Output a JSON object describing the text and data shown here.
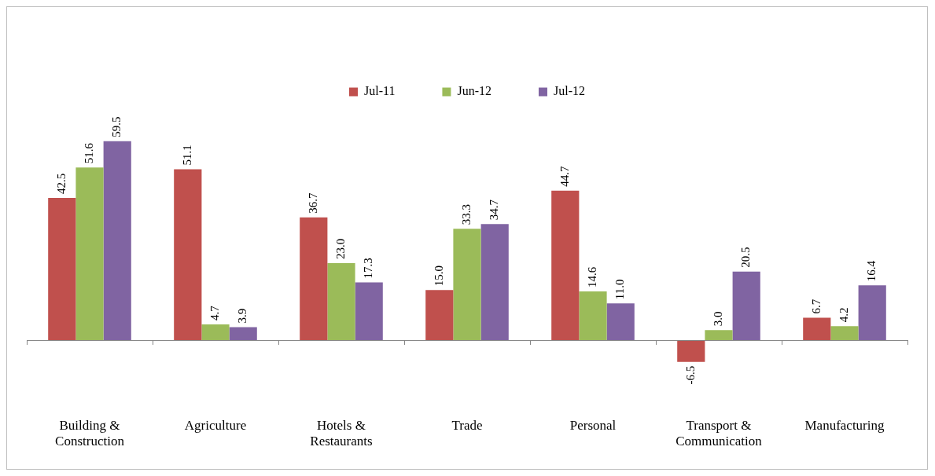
{
  "chart_data": {
    "type": "bar",
    "categories": [
      "Building & Construction",
      "Agriculture",
      "Hotels & Restaurants",
      "Trade",
      "Personal",
      "Transport & Communication",
      "Manufacturing"
    ],
    "series": [
      {
        "name": "Jul-11",
        "color": "#c0504d",
        "values": [
          42.5,
          51.1,
          36.7,
          15.0,
          44.7,
          -6.5,
          6.7
        ],
        "value_labels": [
          "42.5",
          "51.1",
          "36.7",
          "15.0",
          "44.7",
          "-6.5",
          "6.7"
        ]
      },
      {
        "name": "Jun-12",
        "color": "#9bbb59",
        "values": [
          51.6,
          4.7,
          23.0,
          33.3,
          14.6,
          3.0,
          4.2
        ],
        "value_labels": [
          "51.6",
          "4.7",
          "23.0",
          "33.3",
          "14.6",
          "3.0",
          "4.2"
        ]
      },
      {
        "name": "Jul-12",
        "color": "#8064a2",
        "values": [
          59.5,
          3.9,
          17.3,
          34.7,
          11.0,
          20.5,
          16.4
        ],
        "value_labels": [
          "59.5",
          "3.9",
          "17.3",
          "34.7",
          "11.0",
          "20.5",
          "16.4"
        ]
      }
    ],
    "legend": "top",
    "grid": false
  }
}
